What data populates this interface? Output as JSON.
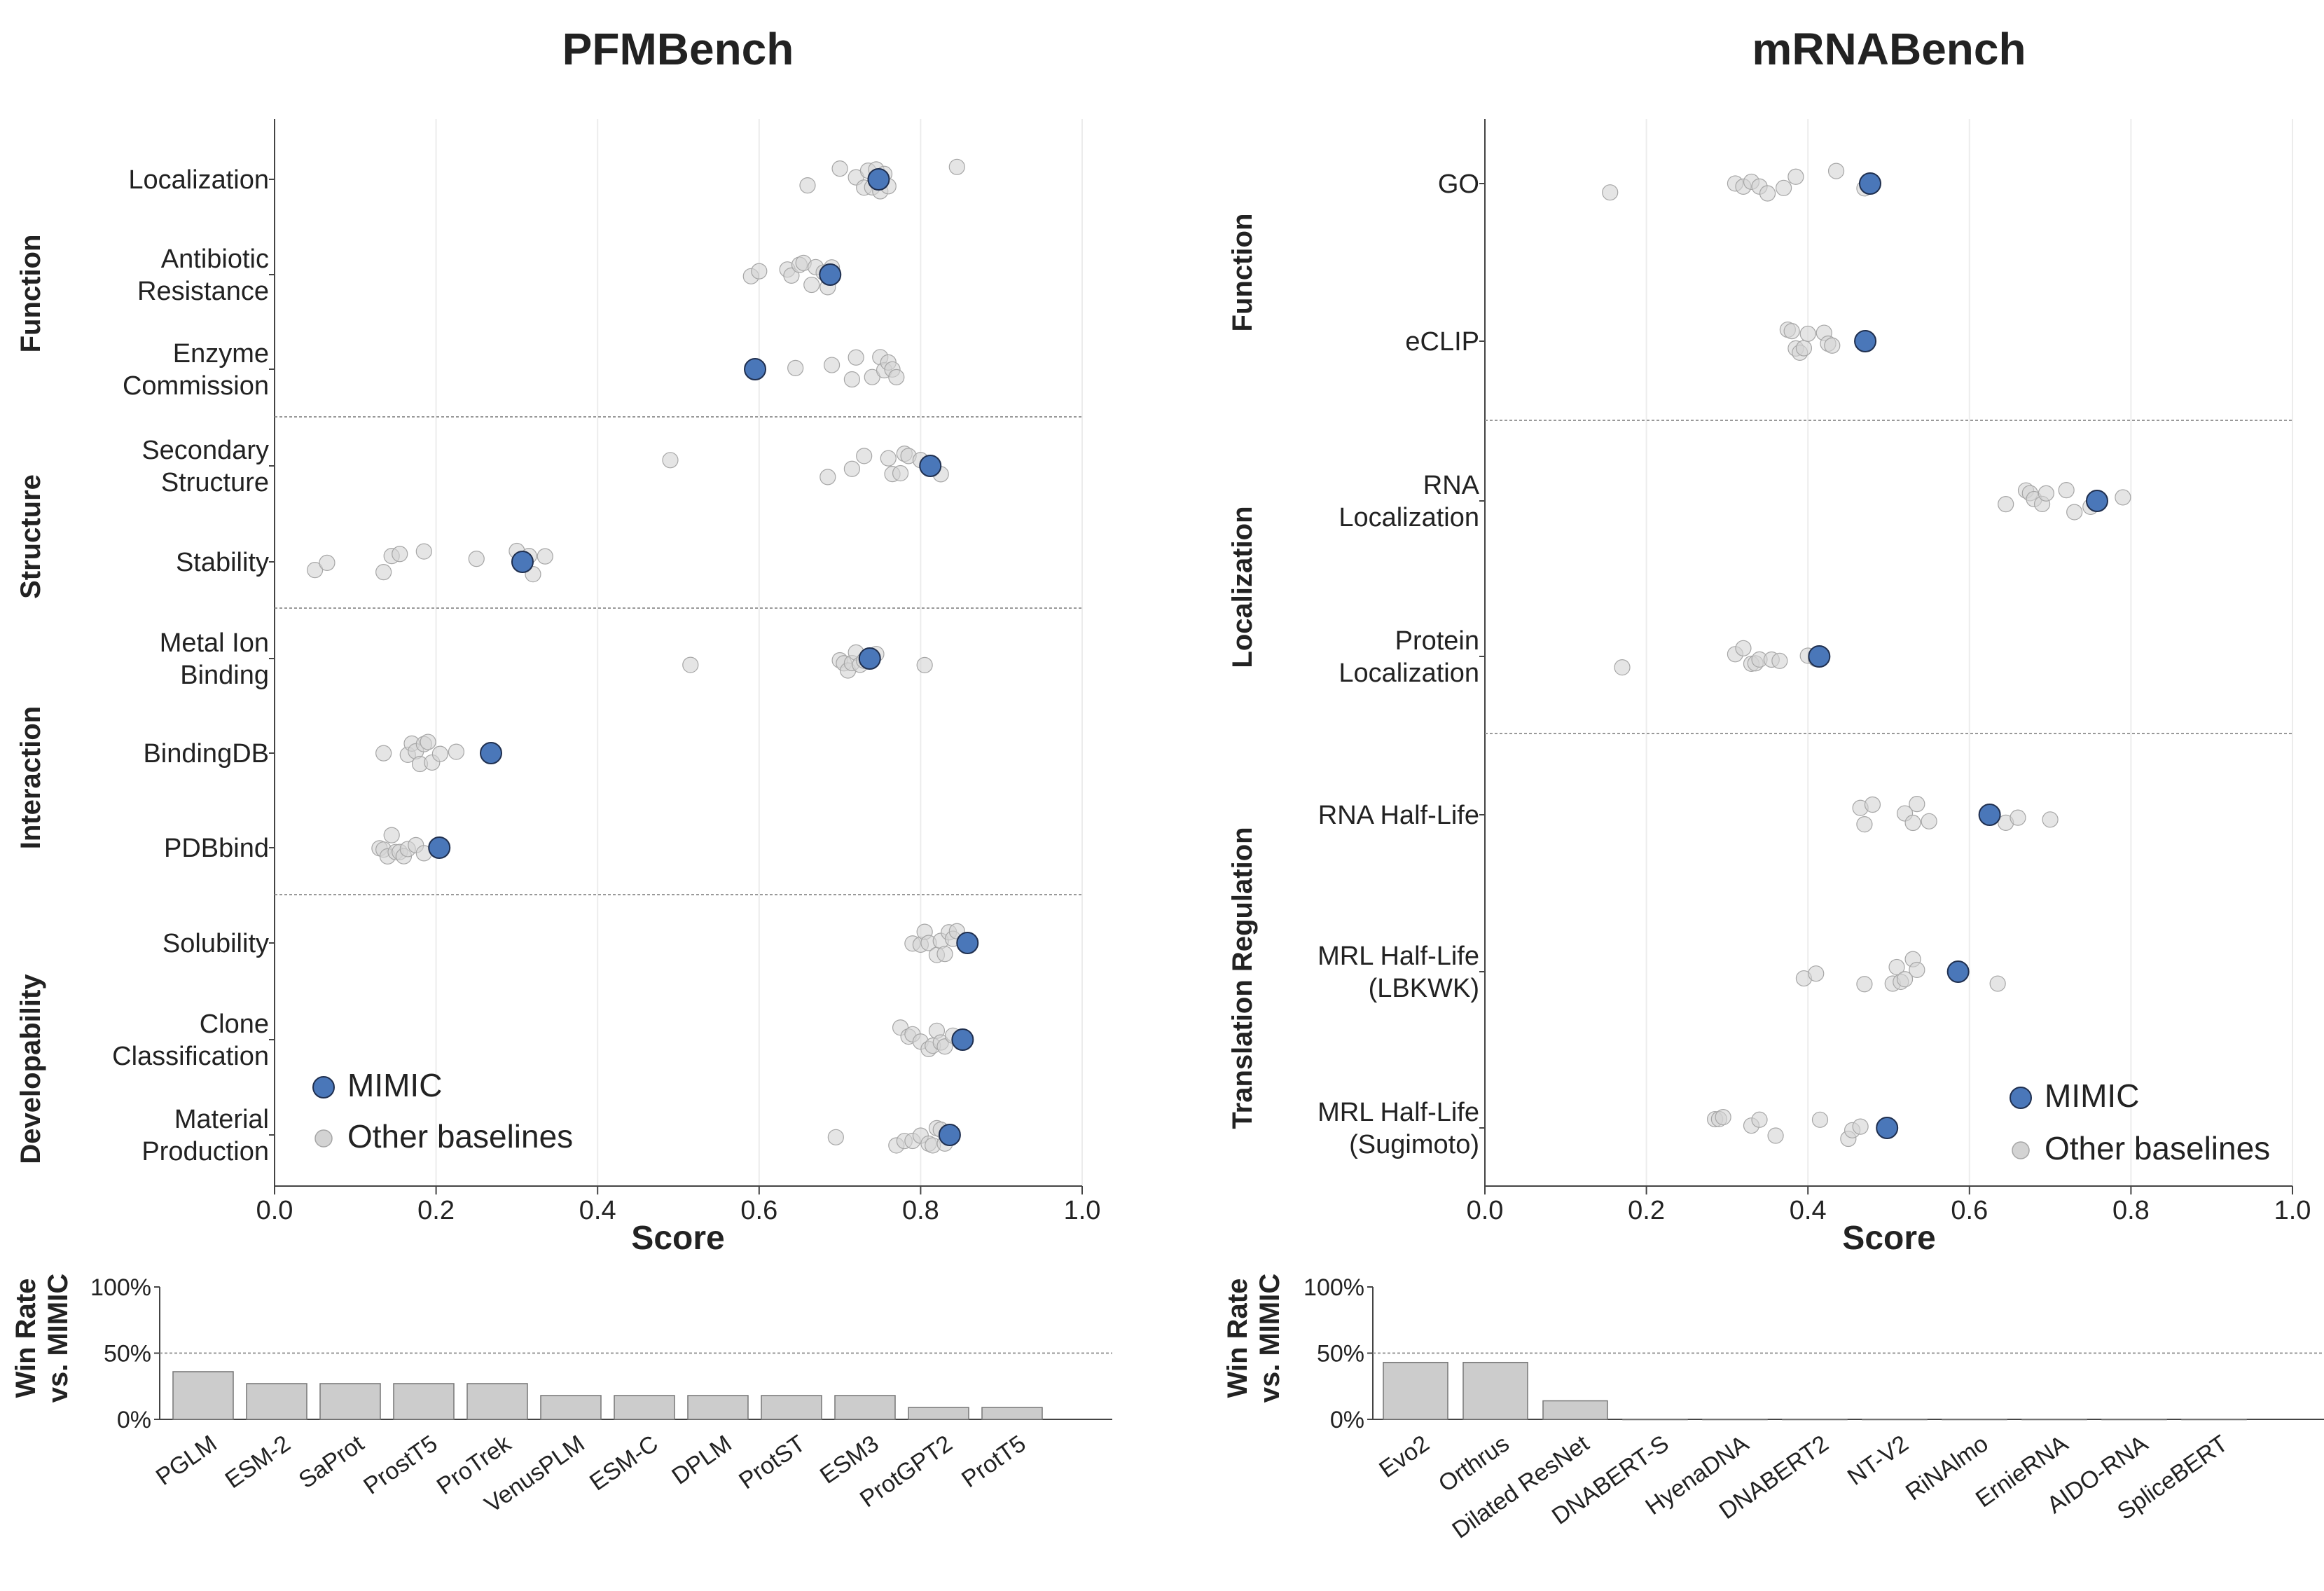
{
  "colors": {
    "mimic": "#4a77b9",
    "mimic_edge": "#1f2f4f",
    "baseline": "#d3d3d3",
    "baseline_edge": "#a6a6a6",
    "bar": "#cccccc",
    "bar_edge": "#777777",
    "axis": "#444444",
    "grid": "#ececec",
    "divider": "#999999"
  },
  "chart_data": [
    {
      "type": "scatter",
      "panel": "left",
      "title": "PFMBench",
      "xlabel": "Score",
      "xlim": [
        0.0,
        1.0
      ],
      "xticks": [
        "0.0",
        "0.2",
        "0.4",
        "0.6",
        "0.8",
        "1.0"
      ],
      "legend": {
        "placement": "bottom-left",
        "mimic_label": "MIMIC",
        "other_label": "Other baselines"
      },
      "groups": [
        {
          "label": "Function",
          "n": 3
        },
        {
          "label": "Structure",
          "n": 2
        },
        {
          "label": "Interaction",
          "n": 3
        },
        {
          "label": "Developability",
          "n": 3
        }
      ],
      "rows": [
        {
          "label": [
            "Localization"
          ],
          "mimic": 0.748,
          "others": [
            0.66,
            0.7,
            0.72,
            0.73,
            0.735,
            0.74,
            0.745,
            0.75,
            0.755,
            0.76,
            0.845
          ]
        },
        {
          "label": [
            "Antibiotic",
            "Resistance"
          ],
          "mimic": 0.688,
          "others": [
            0.59,
            0.6,
            0.635,
            0.64,
            0.65,
            0.655,
            0.665,
            0.67,
            0.68,
            0.685,
            0.69
          ]
        },
        {
          "label": [
            "Enzyme",
            "Commission"
          ],
          "mimic": 0.595,
          "others": [
            0.645,
            0.69,
            0.715,
            0.72,
            0.74,
            0.75,
            0.755,
            0.76,
            0.765,
            0.77
          ]
        },
        {
          "label": [
            "Secondary",
            "Structure"
          ],
          "mimic": 0.812,
          "others": [
            0.49,
            0.685,
            0.715,
            0.73,
            0.76,
            0.765,
            0.775,
            0.78,
            0.785,
            0.8,
            0.825
          ]
        },
        {
          "label": [
            "Stability"
          ],
          "mimic": 0.307,
          "others": [
            0.05,
            0.065,
            0.135,
            0.145,
            0.155,
            0.185,
            0.25,
            0.3,
            0.31,
            0.315,
            0.32,
            0.335
          ]
        },
        {
          "label": [
            "Metal Ion",
            "Binding"
          ],
          "mimic": 0.737,
          "others": [
            0.515,
            0.7,
            0.705,
            0.71,
            0.715,
            0.72,
            0.725,
            0.73,
            0.745,
            0.805
          ]
        },
        {
          "label": [
            "BindingDB"
          ],
          "mimic": 0.268,
          "others": [
            0.135,
            0.165,
            0.17,
            0.175,
            0.18,
            0.185,
            0.19,
            0.195,
            0.205,
            0.225
          ]
        },
        {
          "label": [
            "PDBbind"
          ],
          "mimic": 0.204,
          "others": [
            0.13,
            0.135,
            0.14,
            0.145,
            0.15,
            0.155,
            0.16,
            0.165,
            0.175,
            0.185
          ]
        },
        {
          "label": [
            "Solubility"
          ],
          "mimic": 0.858,
          "others": [
            0.79,
            0.8,
            0.805,
            0.81,
            0.82,
            0.825,
            0.83,
            0.835,
            0.84,
            0.845
          ]
        },
        {
          "label": [
            "Clone",
            "Classification"
          ],
          "mimic": 0.852,
          "others": [
            0.775,
            0.785,
            0.79,
            0.8,
            0.81,
            0.815,
            0.82,
            0.825,
            0.83,
            0.84
          ]
        },
        {
          "label": [
            "Material",
            "Production"
          ],
          "mimic": 0.836,
          "others": [
            0.695,
            0.77,
            0.78,
            0.79,
            0.8,
            0.81,
            0.815,
            0.82,
            0.825,
            0.83
          ]
        }
      ],
      "bars": {
        "ylabel": [
          "Win Rate",
          "vs. MIMIC"
        ],
        "yticks": [
          "100%",
          "50%",
          "0%"
        ],
        "categories": [
          "PGLM",
          "ESM-2",
          "SaProt",
          "ProstT5",
          "ProTrek",
          "VenusPLM",
          "ESM-C",
          "DPLM",
          "ProtST",
          "ESM3",
          "ProtGPT2",
          "ProtT5"
        ],
        "values": [
          36,
          27,
          27,
          27,
          27,
          18,
          18,
          18,
          18,
          18,
          9,
          9
        ]
      }
    },
    {
      "type": "scatter",
      "panel": "right",
      "title": "mRNABench",
      "xlabel": "Score",
      "xlim": [
        0.0,
        1.0
      ],
      "xticks": [
        "0.0",
        "0.2",
        "0.4",
        "0.6",
        "0.8",
        "1.0"
      ],
      "legend": {
        "placement": "bottom-right",
        "mimic_label": "MIMIC",
        "other_label": "Other baselines"
      },
      "groups": [
        {
          "label": "Function",
          "n": 2
        },
        {
          "label": "Localization",
          "n": 2
        },
        {
          "label": "Translation Regulation",
          "n": 3
        }
      ],
      "rows": [
        {
          "label": [
            "GO"
          ],
          "mimic": 0.477,
          "others": [
            0.155,
            0.31,
            0.32,
            0.33,
            0.34,
            0.35,
            0.37,
            0.385,
            0.435,
            0.47
          ]
        },
        {
          "label": [
            "eCLIP"
          ],
          "mimic": 0.471,
          "others": [
            0.375,
            0.38,
            0.385,
            0.39,
            0.395,
            0.4,
            0.42,
            0.425,
            0.43
          ]
        },
        {
          "label": [
            "RNA",
            "Localization"
          ],
          "mimic": 0.758,
          "others": [
            0.645,
            0.67,
            0.675,
            0.68,
            0.69,
            0.695,
            0.72,
            0.73,
            0.75,
            0.79
          ]
        },
        {
          "label": [
            "Protein",
            "Localization"
          ],
          "mimic": 0.414,
          "others": [
            0.17,
            0.31,
            0.32,
            0.33,
            0.335,
            0.34,
            0.355,
            0.365,
            0.4,
            0.41
          ]
        },
        {
          "label": [
            "RNA Half-Life"
          ],
          "mimic": 0.625,
          "others": [
            0.465,
            0.47,
            0.48,
            0.52,
            0.53,
            0.535,
            0.55,
            0.645,
            0.66,
            0.7
          ]
        },
        {
          "label": [
            "MRL Half-Life",
            "(LBKWK)"
          ],
          "mimic": 0.586,
          "others": [
            0.395,
            0.41,
            0.47,
            0.505,
            0.51,
            0.515,
            0.52,
            0.53,
            0.535,
            0.635
          ]
        },
        {
          "label": [
            "MRL Half-Life",
            "(Sugimoto)"
          ],
          "mimic": 0.498,
          "others": [
            0.285,
            0.29,
            0.295,
            0.33,
            0.34,
            0.36,
            0.415,
            0.45,
            0.455,
            0.465
          ]
        }
      ],
      "bars": {
        "ylabel": [
          "Win Rate",
          "vs. MIMIC"
        ],
        "yticks": [
          "100%",
          "50%",
          "0%"
        ],
        "categories": [
          "Evo2",
          "Orthrus",
          "Dilated ResNet",
          "DNABERT-S",
          "HyenaDNA",
          "DNABERT2",
          "NT-V2",
          "RiNAlmo",
          "ErnieRNA",
          "AIDO-RNA",
          "SpliceBERT"
        ],
        "values": [
          43,
          43,
          14,
          0,
          0,
          0,
          0,
          0,
          0,
          0,
          0
        ]
      }
    }
  ]
}
